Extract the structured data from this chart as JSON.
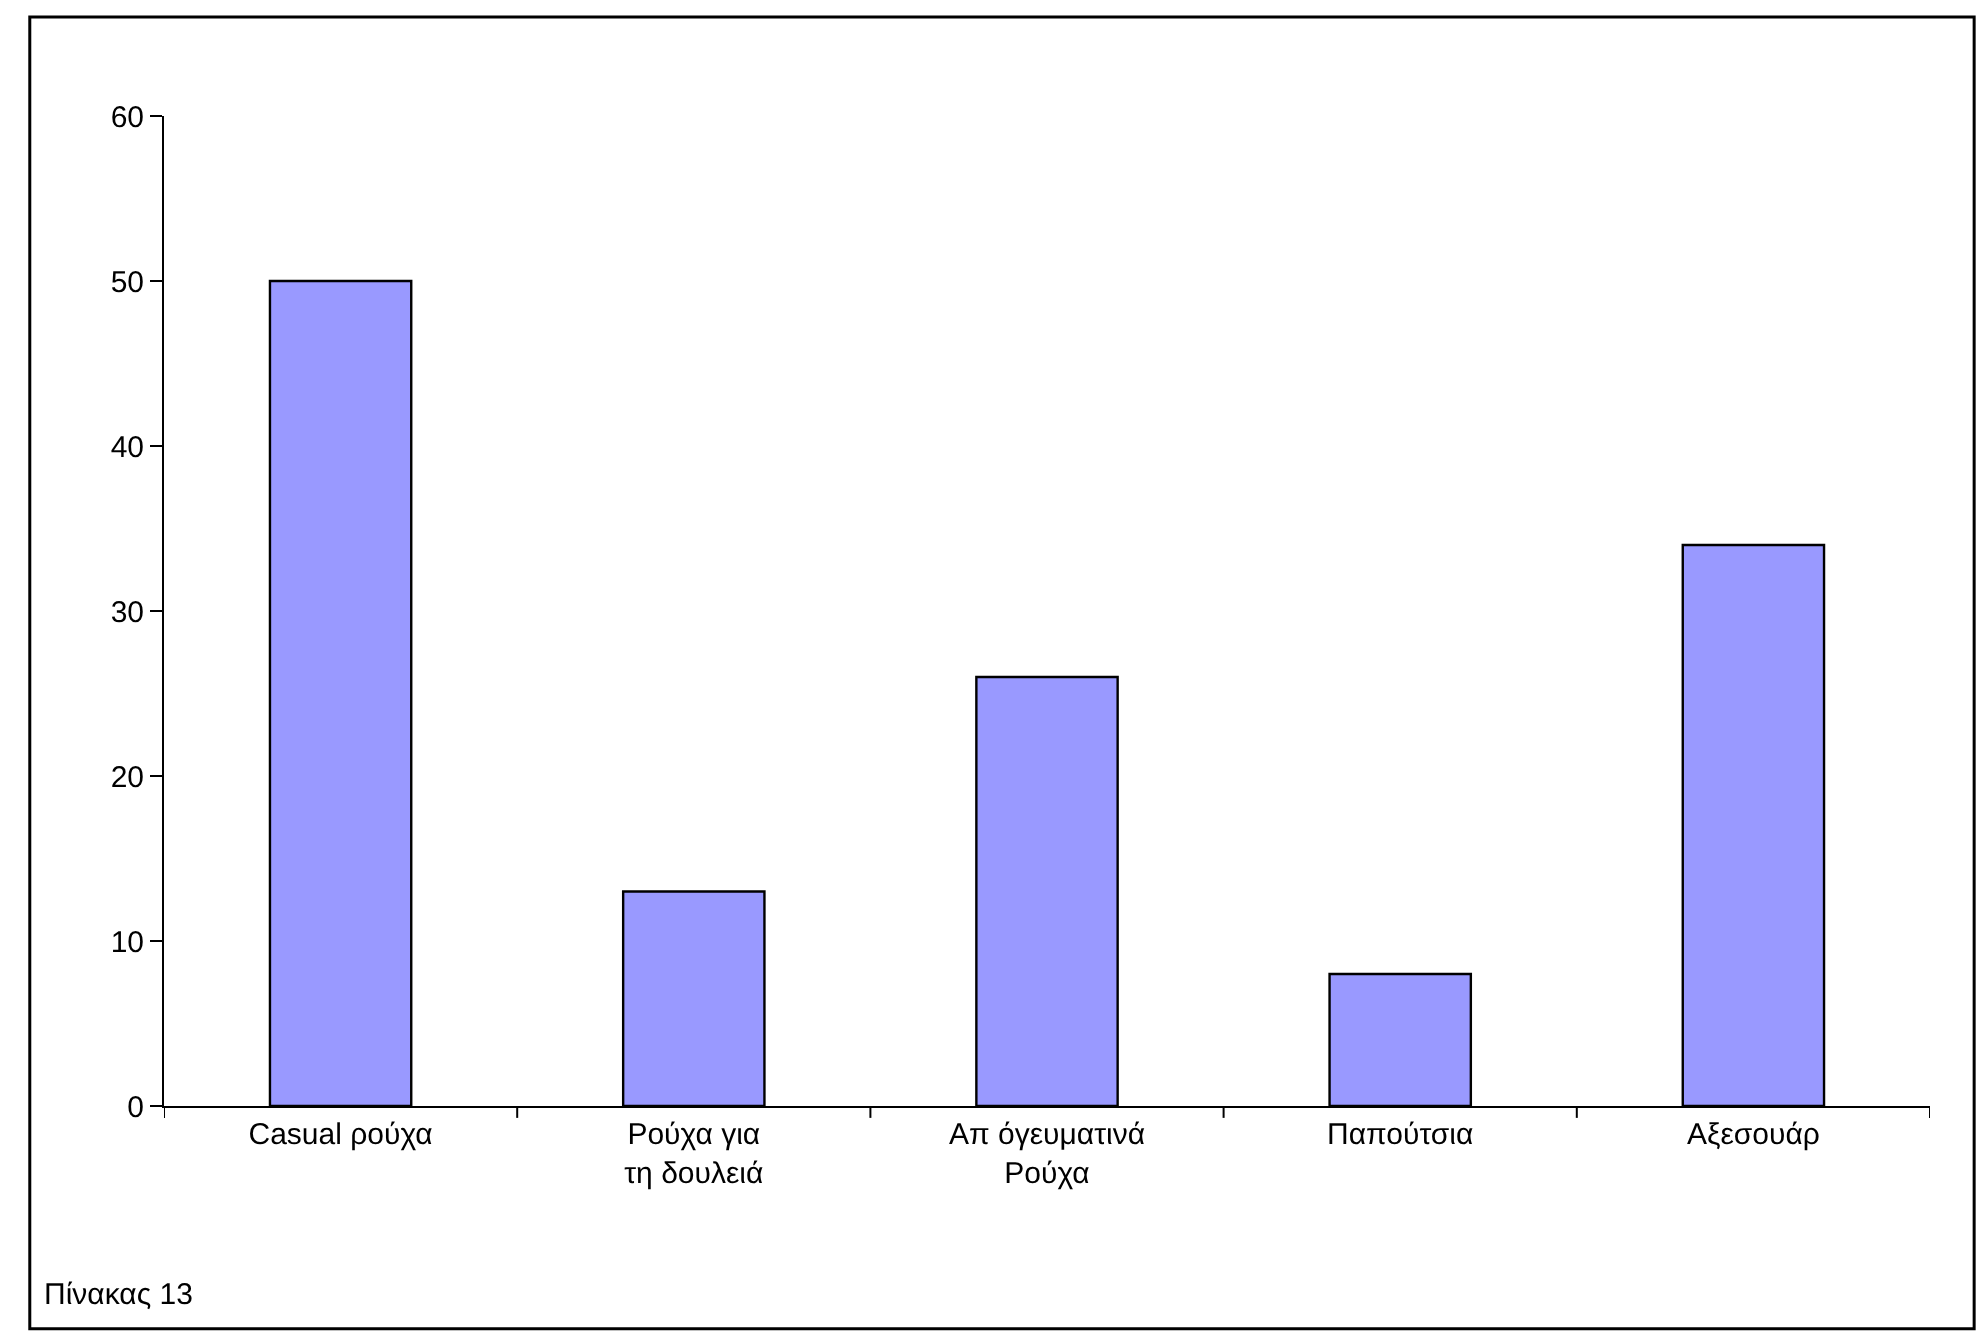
{
  "chart_data": {
    "type": "bar",
    "categories": [
      "Casual ρούχα",
      "Ρούχα για τη δουλειά",
      "Απ όγευματινά Ρούχα",
      "Παπούτσια",
      "Αξεσουάρ"
    ],
    "values": [
      50,
      13,
      26,
      8,
      34
    ],
    "color": "#9999ff",
    "ylim": [
      0,
      60
    ],
    "yticks": [
      0,
      10,
      20,
      30,
      40,
      50,
      60
    ],
    "grid": false,
    "annotations": [
      "Πίνακας 13"
    ]
  }
}
